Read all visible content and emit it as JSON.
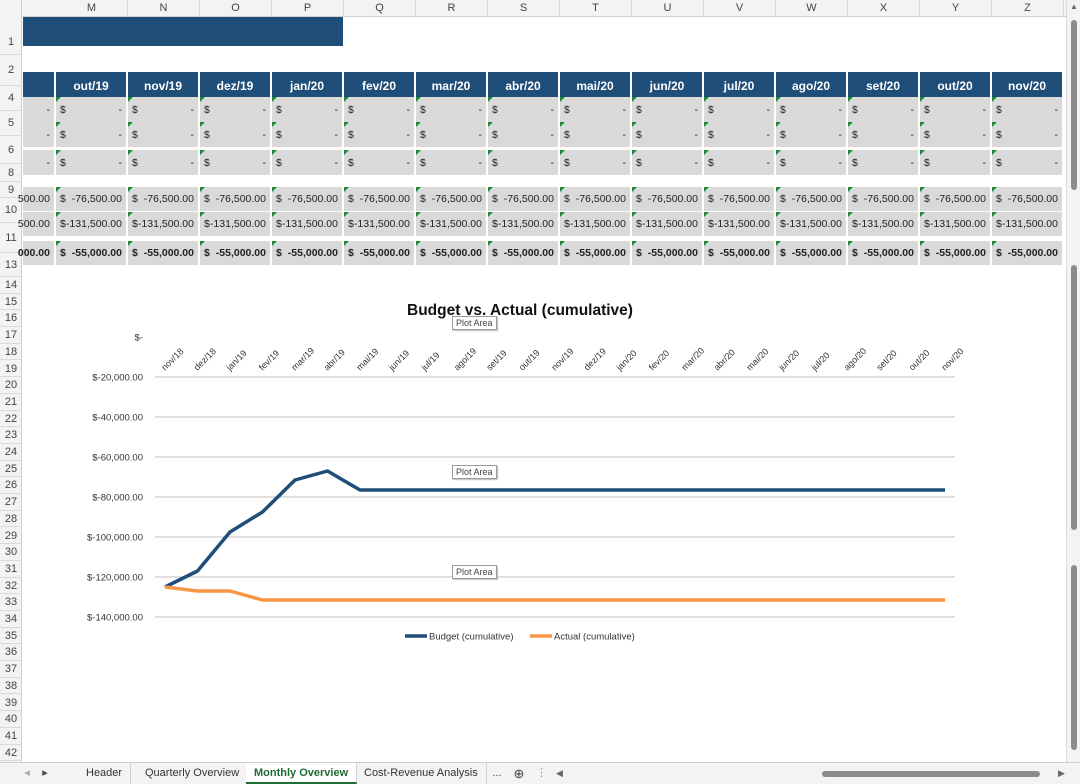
{
  "columns": [
    {
      "letter": "M",
      "month": "out/19"
    },
    {
      "letter": "N",
      "month": "nov/19"
    },
    {
      "letter": "O",
      "month": "dez/19"
    },
    {
      "letter": "P",
      "month": "jan/20"
    },
    {
      "letter": "Q",
      "month": "fev/20"
    },
    {
      "letter": "R",
      "month": "mar/20"
    },
    {
      "letter": "S",
      "month": "abr/20"
    },
    {
      "letter": "T",
      "month": "mai/20"
    },
    {
      "letter": "U",
      "month": "jun/20"
    },
    {
      "letter": "V",
      "month": "jul/20"
    },
    {
      "letter": "W",
      "month": "ago/20"
    },
    {
      "letter": "X",
      "month": "set/20"
    },
    {
      "letter": "Y",
      "month": "out/20"
    },
    {
      "letter": "Z",
      "month": "nov/20"
    }
  ],
  "rows": [
    "1",
    "2",
    "4",
    "5",
    "6",
    "8",
    "9",
    "10",
    "11",
    "13",
    "14",
    "15",
    "16",
    "17",
    "18",
    "19",
    "20",
    "21",
    "22",
    "23",
    "24",
    "25",
    "26",
    "27",
    "28",
    "29",
    "30",
    "31",
    "32",
    "33",
    "34",
    "35",
    "36",
    "37",
    "38",
    "39",
    "40",
    "41",
    "42"
  ],
  "data_rows": [
    {
      "row": "5",
      "partial": "-",
      "currency": "$",
      "value": "-",
      "bold": false
    },
    {
      "row": "6",
      "partial": "-",
      "currency": "$",
      "value": "-",
      "bold": false
    },
    {
      "row": "8",
      "partial": "-",
      "currency": "$",
      "value": "-",
      "bold": false
    },
    {
      "row": "10",
      "partial": "500.00",
      "currency": "$",
      "value": "-76,500.00",
      "bold": false
    },
    {
      "row": "11",
      "partial": "500.00",
      "currency": "$",
      "value": "-131,500.00",
      "bold": false
    },
    {
      "row": "13",
      "partial": "000.00",
      "currency": "$",
      "value": "-55,000.00",
      "bold": true
    }
  ],
  "chart_data": {
    "type": "line",
    "title": "Budget vs. Actual (cumulative)",
    "categories": [
      "nov/18",
      "dez/18",
      "jan/19",
      "fev/19",
      "mar/19",
      "abr/19",
      "mai/19",
      "jun/19",
      "jul/19",
      "ago/19",
      "set/19",
      "out/19",
      "nov/19",
      "dez/19",
      "jan/20",
      "fev/20",
      "mar/20",
      "abr/20",
      "mai/20",
      "jun/20",
      "jul/20",
      "ago/20",
      "set/20",
      "out/20",
      "nov/20"
    ],
    "y_tick_labels": [
      "$-",
      "$-20,000.00",
      "$-40,000.00",
      "$-60,000.00",
      "$-80,000.00",
      "$-100,000.00",
      "$-120,000.00",
      "$-140,000.00"
    ],
    "ylim": [
      -140000,
      0
    ],
    "series": [
      {
        "name": "Budget (cumulative)",
        "color": "#1f4e79",
        "values": [
          -125000,
          -117000,
          -97500,
          -87500,
          -71500,
          -67000,
          -76500,
          -76500,
          -76500,
          -76500,
          -76500,
          -76500,
          -76500,
          -76500,
          -76500,
          -76500,
          -76500,
          -76500,
          -76500,
          -76500,
          -76500,
          -76500,
          -76500,
          -76500,
          -76500
        ]
      },
      {
        "name": "Actual (cumulative)",
        "color": "#f79646",
        "values": [
          -125000,
          -127000,
          -127000,
          -131500,
          -131500,
          -131500,
          -131500,
          -131500,
          -131500,
          -131500,
          -131500,
          -131500,
          -131500,
          -131500,
          -131500,
          -131500,
          -131500,
          -131500,
          -131500,
          -131500,
          -131500,
          -131500,
          -131500,
          -131500,
          -131500
        ]
      }
    ],
    "grid": true,
    "legend_position": "bottom",
    "plot_area_tooltip": "Plot Area"
  },
  "tabs": {
    "items": [
      "Header",
      "Quarterly Overview",
      "Monthly Overview",
      "Cost-Revenue Analysis"
    ],
    "active": "Monthly Overview",
    "more": "...",
    "add": "⊕"
  }
}
